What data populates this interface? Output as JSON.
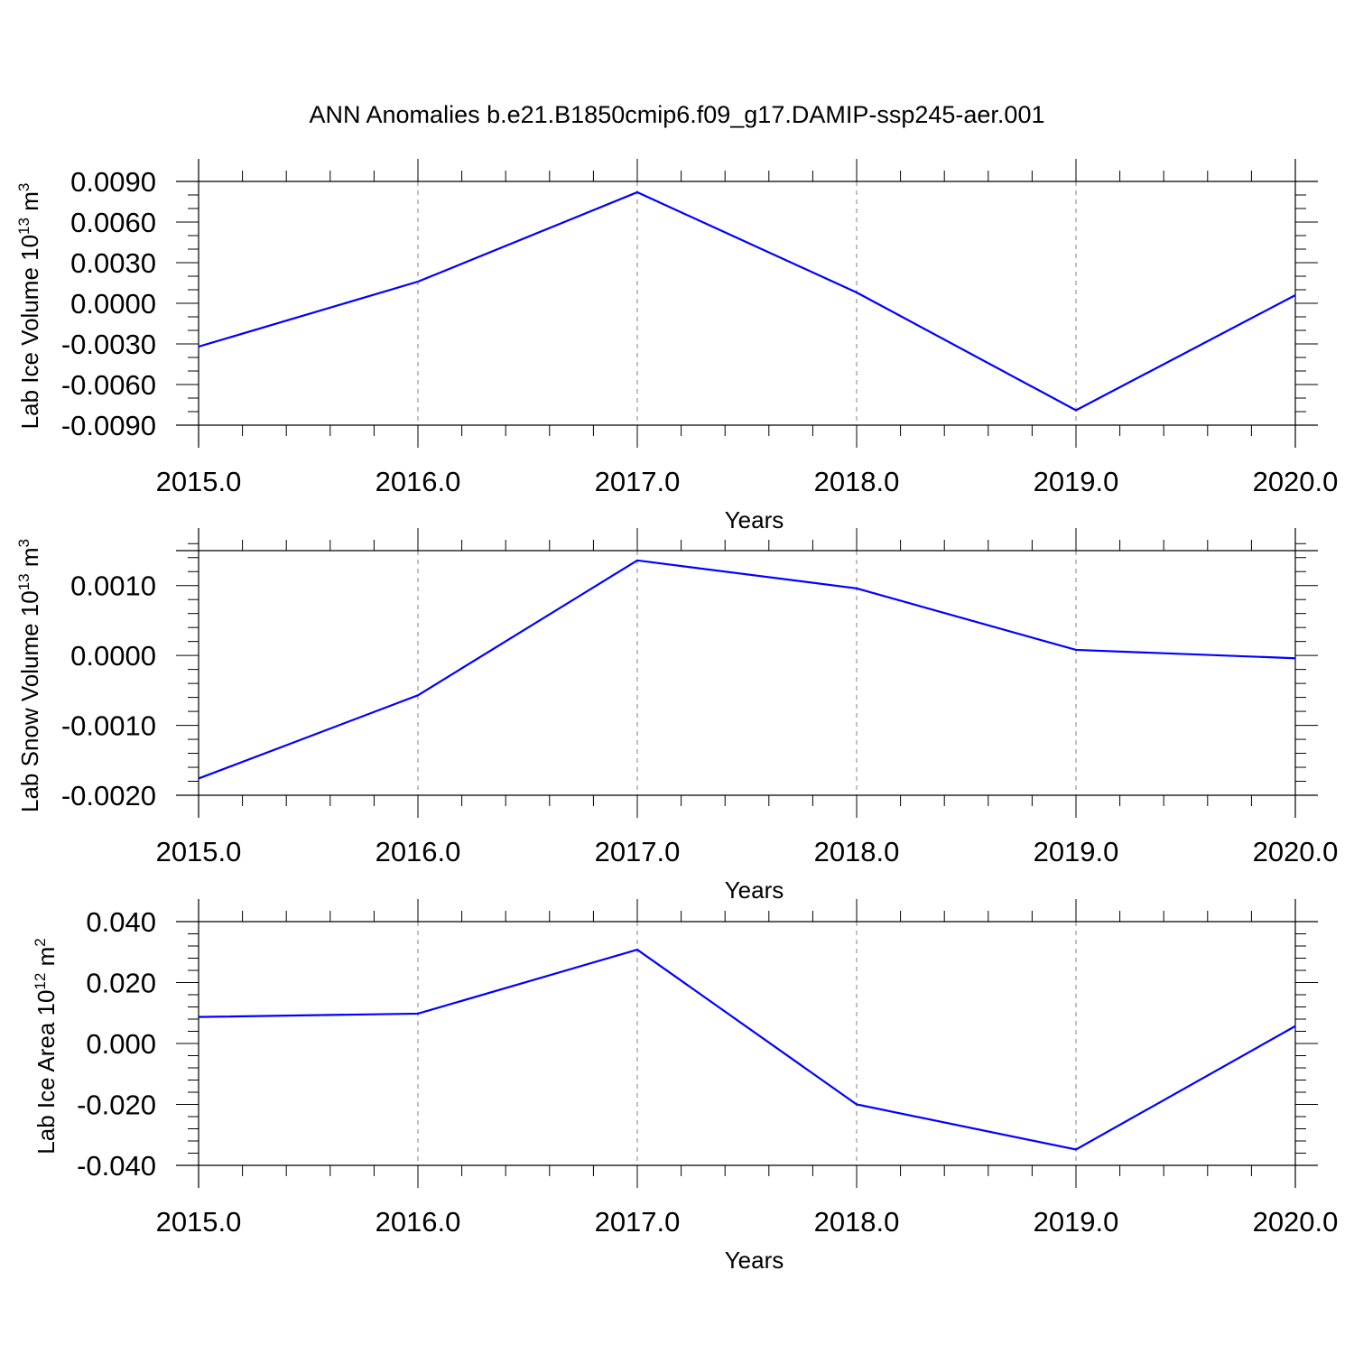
{
  "title": "ANN Anomalies b.e21.B1850cmip6.f09_g17.DAMIP-ssp245-aer.001",
  "line_color": "#0000ff",
  "chart_data": [
    {
      "type": "line",
      "ylabel": "Lab Ice Volume 10",
      "ylabel_sup": "13",
      "ylabel_unit": " m",
      "ylabel_unit_sup": "3",
      "xlabel": "Years",
      "x": [
        2015,
        2016,
        2017,
        2018,
        2019,
        2020
      ],
      "series": [
        {
          "values": [
            -0.0032,
            0.0016,
            0.0082,
            0.0008,
            -0.0079,
            0.0006
          ]
        }
      ],
      "xlim": [
        2015,
        2020
      ],
      "ylim": [
        -0.009,
        0.009
      ],
      "xticks": [
        "2015.0",
        "2016.0",
        "2017.0",
        "2018.0",
        "2019.0",
        "2020.0"
      ],
      "yticks": [
        -0.009,
        -0.006,
        -0.003,
        0.0,
        0.003,
        0.006,
        0.009
      ],
      "ytick_labels": [
        "-0.0090",
        "-0.0060",
        "-0.0030",
        "0.0000",
        "0.0030",
        "0.0060",
        "0.0090"
      ],
      "y_minor_step": 0.001,
      "grid": "vertical dashed at major x ticks"
    },
    {
      "type": "line",
      "ylabel": "Lab Snow Volume 10",
      "ylabel_sup": "13",
      "ylabel_unit": " m",
      "ylabel_unit_sup": "3",
      "xlabel": "Years",
      "x": [
        2015,
        2016,
        2017,
        2018,
        2019,
        2020
      ],
      "series": [
        {
          "values": [
            -0.00176,
            -0.00057,
            0.00136,
            0.00096,
            8e-05,
            -4e-05
          ]
        }
      ],
      "xlim": [
        2015,
        2020
      ],
      "ylim": [
        -0.002,
        0.0015
      ],
      "xticks": [
        "2015.0",
        "2016.0",
        "2017.0",
        "2018.0",
        "2019.0",
        "2020.0"
      ],
      "yticks": [
        -0.002,
        -0.001,
        0.0,
        0.001
      ],
      "ytick_labels": [
        "-0.0020",
        "-0.0010",
        "0.0000",
        "0.0010"
      ],
      "y_minor_step": 0.0002,
      "grid": "vertical dashed at major x ticks"
    },
    {
      "type": "line",
      "ylabel": "Lab Ice Area 10",
      "ylabel_sup": "12",
      "ylabel_unit": " m",
      "ylabel_unit_sup": "2",
      "xlabel": "Years",
      "x": [
        2015,
        2016,
        2017,
        2018,
        2019,
        2020
      ],
      "series": [
        {
          "values": [
            0.0087,
            0.0098,
            0.0308,
            -0.02,
            -0.0348,
            0.0057
          ]
        }
      ],
      "xlim": [
        2015,
        2020
      ],
      "ylim": [
        -0.04,
        0.04
      ],
      "xticks": [
        "2015.0",
        "2016.0",
        "2017.0",
        "2018.0",
        "2019.0",
        "2020.0"
      ],
      "yticks": [
        -0.04,
        -0.02,
        0.0,
        0.02,
        0.04
      ],
      "ytick_labels": [
        "-0.040",
        "-0.020",
        "0.000",
        "0.020",
        "0.040"
      ],
      "y_minor_step": 0.004,
      "grid": "vertical dashed at major x ticks"
    }
  ]
}
